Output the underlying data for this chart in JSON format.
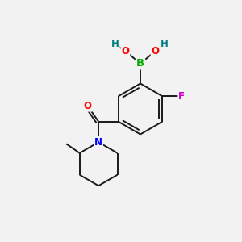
{
  "bg_color": "#f2f2f2",
  "bond_color": "#1a1a1a",
  "atom_colors": {
    "B": "#00aa00",
    "O": "#ff0000",
    "H": "#008080",
    "N": "#0000ff",
    "F": "#cc00cc",
    "C": "#1a1a1a"
  },
  "font_size": 8.5,
  "line_width": 1.4,
  "figsize": [
    3.0,
    3.0
  ],
  "dpi": 100,
  "xlim": [
    0,
    10
  ],
  "ylim": [
    0,
    10
  ]
}
